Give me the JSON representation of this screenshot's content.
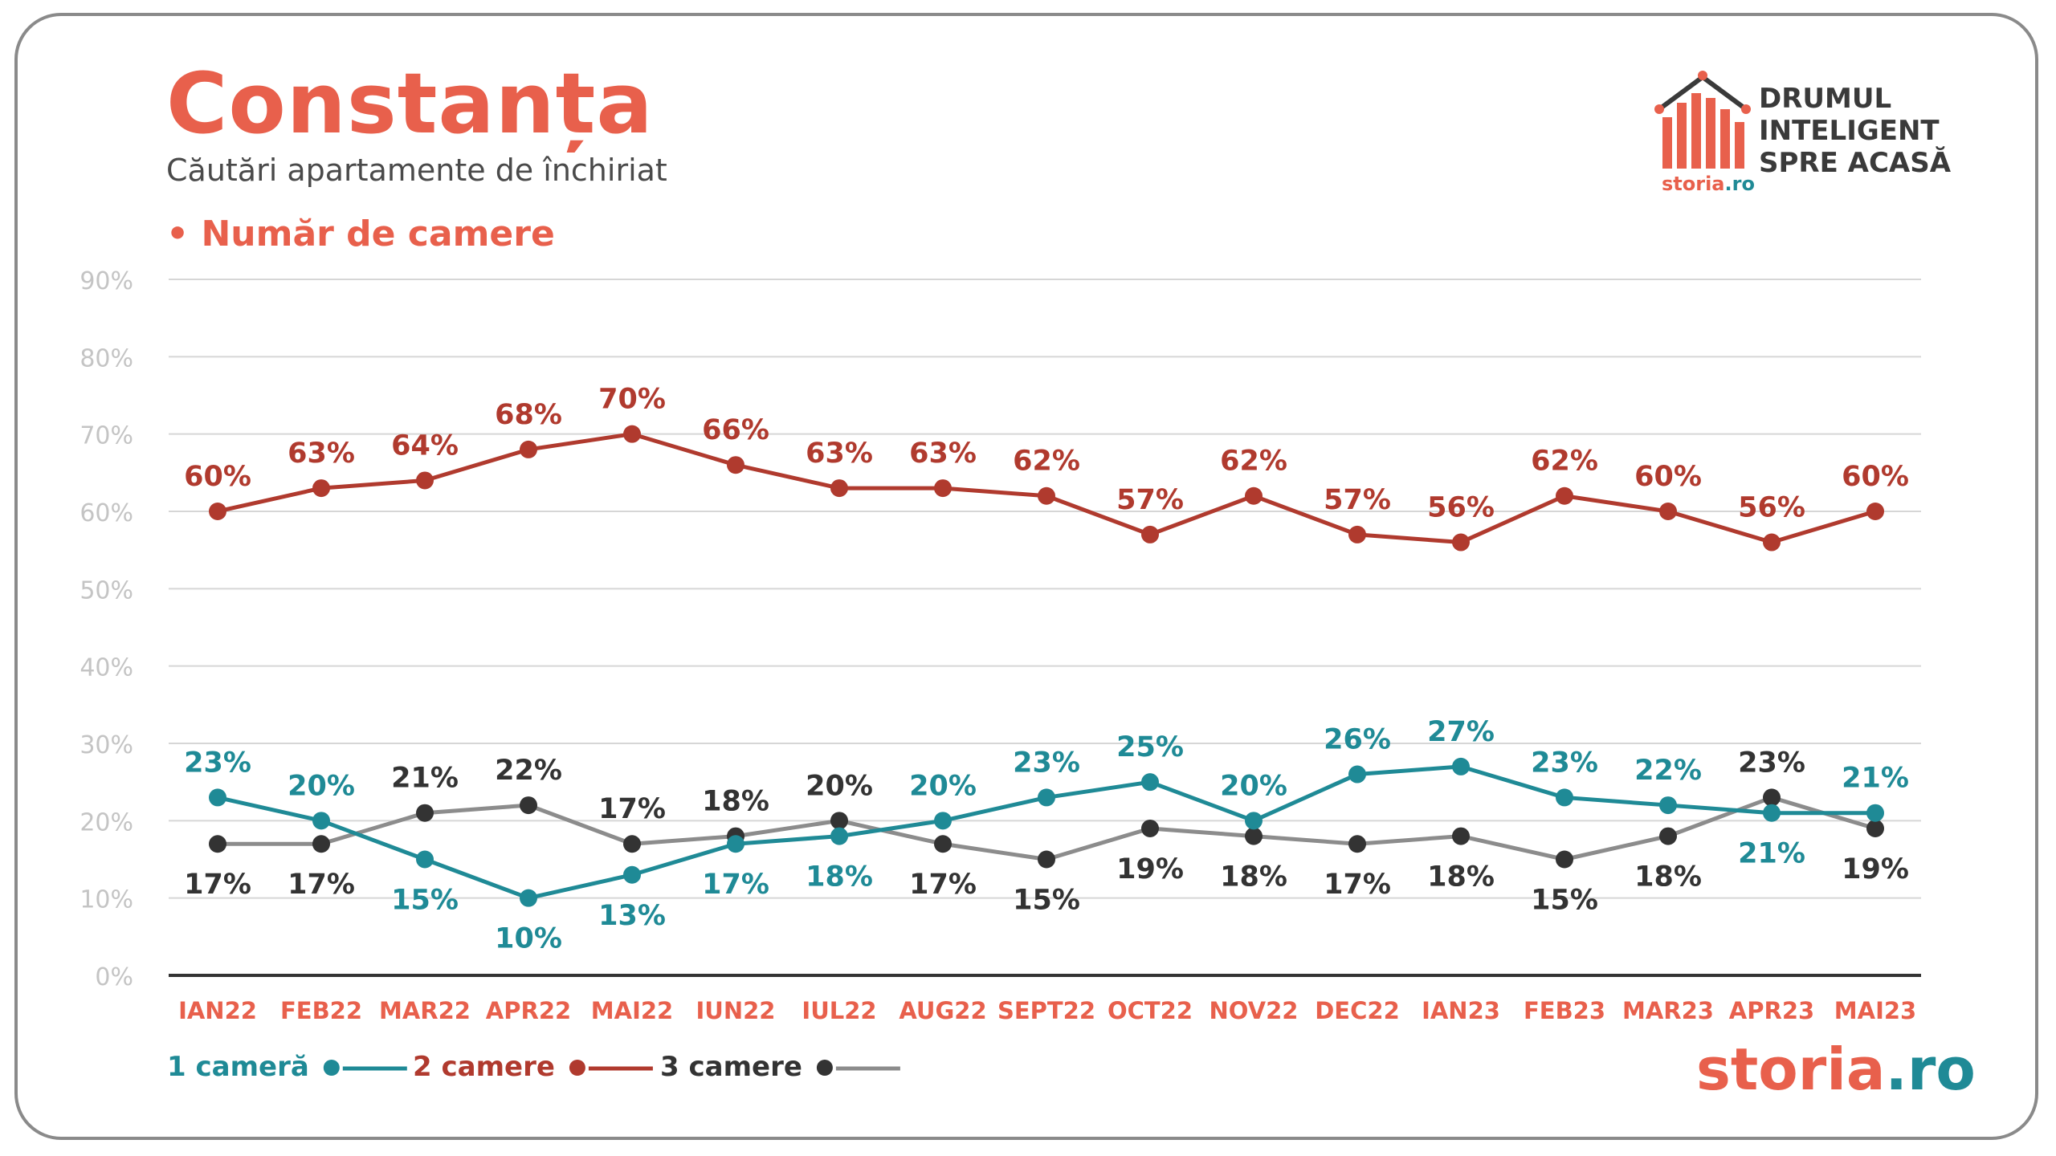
{
  "header": {
    "title": "Constanța",
    "subtitle": "Căutări apartamente de închiriat",
    "section": "• Număr de camere"
  },
  "brand": {
    "tagline": [
      "DRUMUL",
      "INTELIGENT",
      "SPRE ACASĂ"
    ],
    "logo_name": "storia",
    "logo_tld": ".ro"
  },
  "colors": {
    "accent": "#e8604c",
    "series_1": "#1f8a96",
    "series_2": "#b03a2e",
    "series_3_line": "#8c8c8c",
    "series_3_marker": "#333333",
    "grid": "#d6d6d6",
    "axis_tick": "#c4c4c4"
  },
  "chart_data": {
    "type": "line",
    "title": "",
    "xlabel": "",
    "ylabel": "",
    "ylim": [
      0,
      90
    ],
    "yticks": [
      "0%",
      "10%",
      "20%",
      "30%",
      "40%",
      "50%",
      "60%",
      "70%",
      "80%",
      "90%"
    ],
    "grid": true,
    "legend_position": "bottom-left",
    "categories": [
      "IAN22",
      "FEB22",
      "MAR22",
      "APR22",
      "MAI22",
      "IUN22",
      "IUL22",
      "AUG22",
      "SEPT22",
      "OCT22",
      "NOV22",
      "DEC22",
      "IAN23",
      "FEB23",
      "MAR23",
      "APR23",
      "MAI23"
    ],
    "series": [
      {
        "name": "1 cameră",
        "values": [
          23,
          20,
          15,
          10,
          13,
          17,
          18,
          20,
          23,
          25,
          20,
          26,
          27,
          23,
          22,
          21,
          21
        ],
        "labels": [
          "23%",
          "20%",
          "15%",
          "10%",
          "13%",
          "17%",
          "18%",
          "20%",
          "23%",
          "25%",
          "20%",
          "26%",
          "27%",
          "23%",
          "22%",
          "21%",
          "21%"
        ]
      },
      {
        "name": "2 camere",
        "values": [
          60,
          63,
          64,
          68,
          70,
          66,
          63,
          63,
          62,
          57,
          62,
          57,
          56,
          62,
          60,
          56,
          60
        ],
        "labels": [
          "60%",
          "63%",
          "64%",
          "68%",
          "70%",
          "66%",
          "63%",
          "63%",
          "62%",
          "57%",
          "62%",
          "57%",
          "56%",
          "62%",
          "60%",
          "56%",
          "60%"
        ]
      },
      {
        "name": "3 camere",
        "values": [
          17,
          17,
          21,
          22,
          17,
          18,
          20,
          17,
          15,
          19,
          18,
          17,
          18,
          15,
          18,
          23,
          19
        ],
        "labels": [
          "17%",
          "17%",
          "21%",
          "22%",
          "17%",
          "18%",
          "20%",
          "17%",
          "15%",
          "19%",
          "18%",
          "17%",
          "18%",
          "15%",
          "18%",
          "23%",
          "19%"
        ]
      }
    ]
  }
}
